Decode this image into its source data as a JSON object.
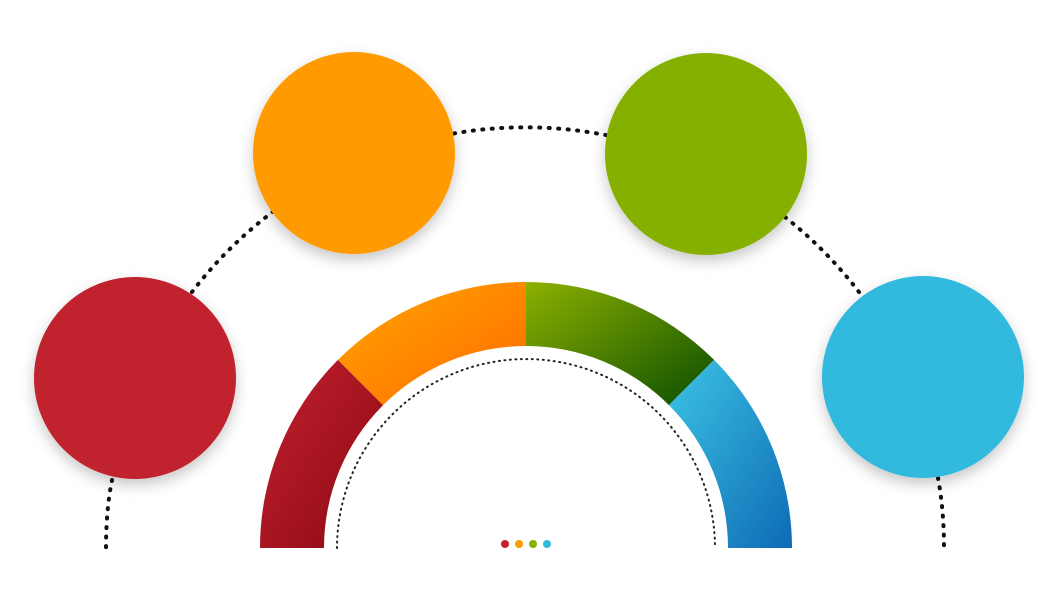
{
  "diagram": {
    "colors": {
      "red": "#C0202F",
      "orange": "#FF9B00",
      "green": "#86B000",
      "blue": "#33B9DE",
      "connector": "#111111",
      "background": "#FFFFFF"
    },
    "nodes": [
      {
        "id": "red",
        "color": "#C0202F"
      },
      {
        "id": "orange",
        "color": "#FF9B00"
      },
      {
        "id": "green",
        "color": "#86B000"
      },
      {
        "id": "blue",
        "color": "#33B9DE"
      }
    ],
    "arc_segments": [
      {
        "id": "red",
        "from": "#C4202F",
        "to": "#8A0A12"
      },
      {
        "id": "orange",
        "from": "#FFA600",
        "to": "#FF6A00"
      },
      {
        "id": "green",
        "from": "#8DB100",
        "to": "#0A4D00"
      },
      {
        "id": "blue",
        "from": "#3CC4E4",
        "to": "#0E6BB5"
      }
    ],
    "pager_dots": [
      {
        "color": "#C0202F"
      },
      {
        "color": "#FF9B00"
      },
      {
        "color": "#86B000"
      },
      {
        "color": "#33B9DE"
      }
    ]
  }
}
